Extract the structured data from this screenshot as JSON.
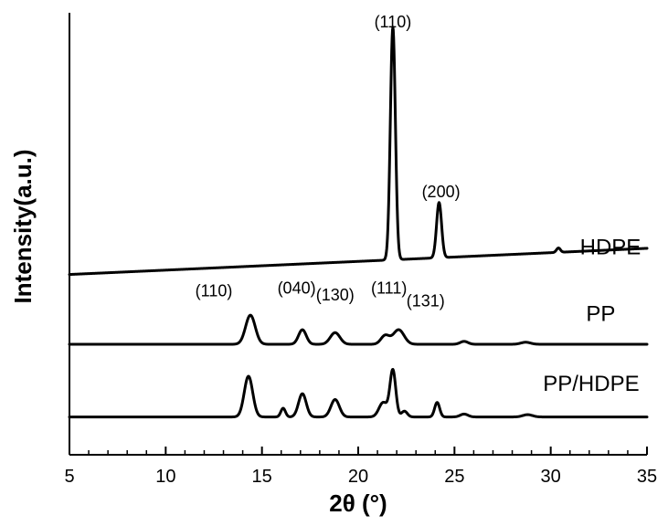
{
  "chart_data": {
    "type": "line",
    "xlabel": "2θ (°)",
    "ylabel": "Intensity(a.u.)",
    "xlim": [
      5,
      35
    ],
    "xticks": [
      5,
      10,
      15,
      20,
      25,
      30,
      35
    ],
    "yticks_shown": false,
    "grid": false,
    "legend": "none",
    "y_units": "arbitrary (stacked, offset traces)",
    "series": [
      {
        "name": "HDPE",
        "baseline": 0.0,
        "baseline_slope": 0.003,
        "offset": 0.62,
        "peaks": [
          {
            "x": 21.8,
            "height": 0.8,
            "width": 0.13
          },
          {
            "x": 24.2,
            "height": 0.19,
            "width": 0.13
          },
          {
            "x": 30.4,
            "height": 0.015,
            "width": 0.1
          }
        ]
      },
      {
        "name": "PP",
        "baseline": 0.0,
        "baseline_slope": 0.0,
        "offset": 0.38,
        "peaks": [
          {
            "x": 14.4,
            "height": 0.1,
            "width": 0.25
          },
          {
            "x": 17.1,
            "height": 0.05,
            "width": 0.2
          },
          {
            "x": 18.8,
            "height": 0.04,
            "width": 0.25
          },
          {
            "x": 21.4,
            "height": 0.03,
            "width": 0.22
          },
          {
            "x": 22.1,
            "height": 0.05,
            "width": 0.28
          },
          {
            "x": 25.5,
            "height": 0.01,
            "width": 0.2
          },
          {
            "x": 28.7,
            "height": 0.007,
            "width": 0.25
          }
        ]
      },
      {
        "name": "PP/HDPE",
        "baseline": 0.0,
        "baseline_slope": 0.0,
        "offset": 0.13,
        "peaks": [
          {
            "x": 14.3,
            "height": 0.14,
            "width": 0.22
          },
          {
            "x": 16.1,
            "height": 0.03,
            "width": 0.12
          },
          {
            "x": 17.1,
            "height": 0.08,
            "width": 0.2
          },
          {
            "x": 18.8,
            "height": 0.06,
            "width": 0.22
          },
          {
            "x": 21.3,
            "height": 0.05,
            "width": 0.22
          },
          {
            "x": 21.8,
            "height": 0.16,
            "width": 0.15
          },
          {
            "x": 22.4,
            "height": 0.02,
            "width": 0.15
          },
          {
            "x": 24.1,
            "height": 0.05,
            "width": 0.13
          },
          {
            "x": 25.5,
            "height": 0.01,
            "width": 0.2
          },
          {
            "x": 28.8,
            "height": 0.008,
            "width": 0.25
          }
        ]
      }
    ],
    "ylim": [
      0,
      1.52
    ],
    "annotations": [
      {
        "text": "(110)",
        "x": 21.8,
        "y": 1.47
      },
      {
        "text": "(200)",
        "x": 24.3,
        "y": 0.885
      },
      {
        "text": "(110)",
        "x": 12.5,
        "y": 0.545
      },
      {
        "text": "(040)",
        "x": 16.8,
        "y": 0.555
      },
      {
        "text": "(130)",
        "x": 18.8,
        "y": 0.53
      },
      {
        "text": "(111)",
        "x": 21.6,
        "y": 0.555
      },
      {
        "text": "(131)",
        "x": 23.5,
        "y": 0.51
      }
    ],
    "series_label_pos": [
      {
        "x": 33.1,
        "y": 0.69
      },
      {
        "x": 32.6,
        "y": 0.46
      },
      {
        "x": 32.1,
        "y": 0.22
      }
    ]
  }
}
